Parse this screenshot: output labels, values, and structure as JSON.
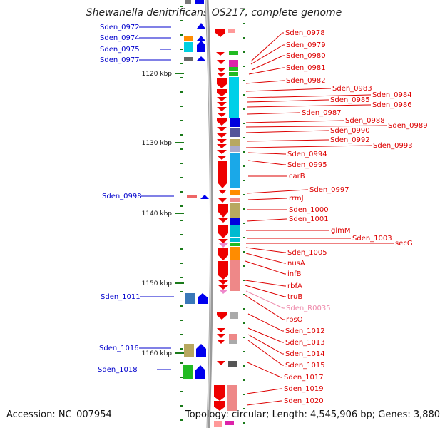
{
  "title": "Shewanella denitrificans OS217, complete genome",
  "footer": {
    "accession": "Accession: NC_007954",
    "topology": "Topology: circular; Length: 4,545,906 bp; Genes: 3,880"
  },
  "scale_labels": [
    "1120 kbp",
    "1130 kbp",
    "1140 kbp",
    "1150 kbp",
    "1160 kbp"
  ],
  "left_labels": [
    "Sden_0972",
    "Sden_0974",
    "Sden_0975",
    "Sden_0977",
    "Sden_0998",
    "Sden_1011",
    "Sden_1016",
    "Sden_1018"
  ],
  "right_labels": [
    "Sden_0978",
    "Sden_0979",
    "Sden_0980",
    "Sden_0981",
    "Sden_0982",
    "Sden_0983",
    "Sden_0984",
    "Sden_0985",
    "Sden_0986",
    "Sden_0987",
    "Sden_0988",
    "Sden_0989",
    "Sden_0990",
    "Sden_0992",
    "Sden_0993",
    "Sden_0994",
    "Sden_0995",
    "carB",
    "Sden_0997",
    "rrmJ",
    "Sden_1000",
    "Sden_1001",
    "glmM",
    "Sden_1003",
    "secG",
    "Sden_1005",
    "nusA",
    "infB",
    "rbfA",
    "truB",
    "Sden_R0035",
    "rpsO",
    "Sden_1012",
    "Sden_1013",
    "Sden_1014",
    "Sden_1015",
    "Sden_1017",
    "Sden_1019",
    "Sden_1020"
  ],
  "colors": {
    "left_label": "#0000cc",
    "right_label": "#dd0000",
    "rna_label": "#ee88aa",
    "forward_gene": "#0000ee",
    "reverse_gene": "#ee0000",
    "tick": "#1a7a1a",
    "backbone": "#999999"
  }
}
